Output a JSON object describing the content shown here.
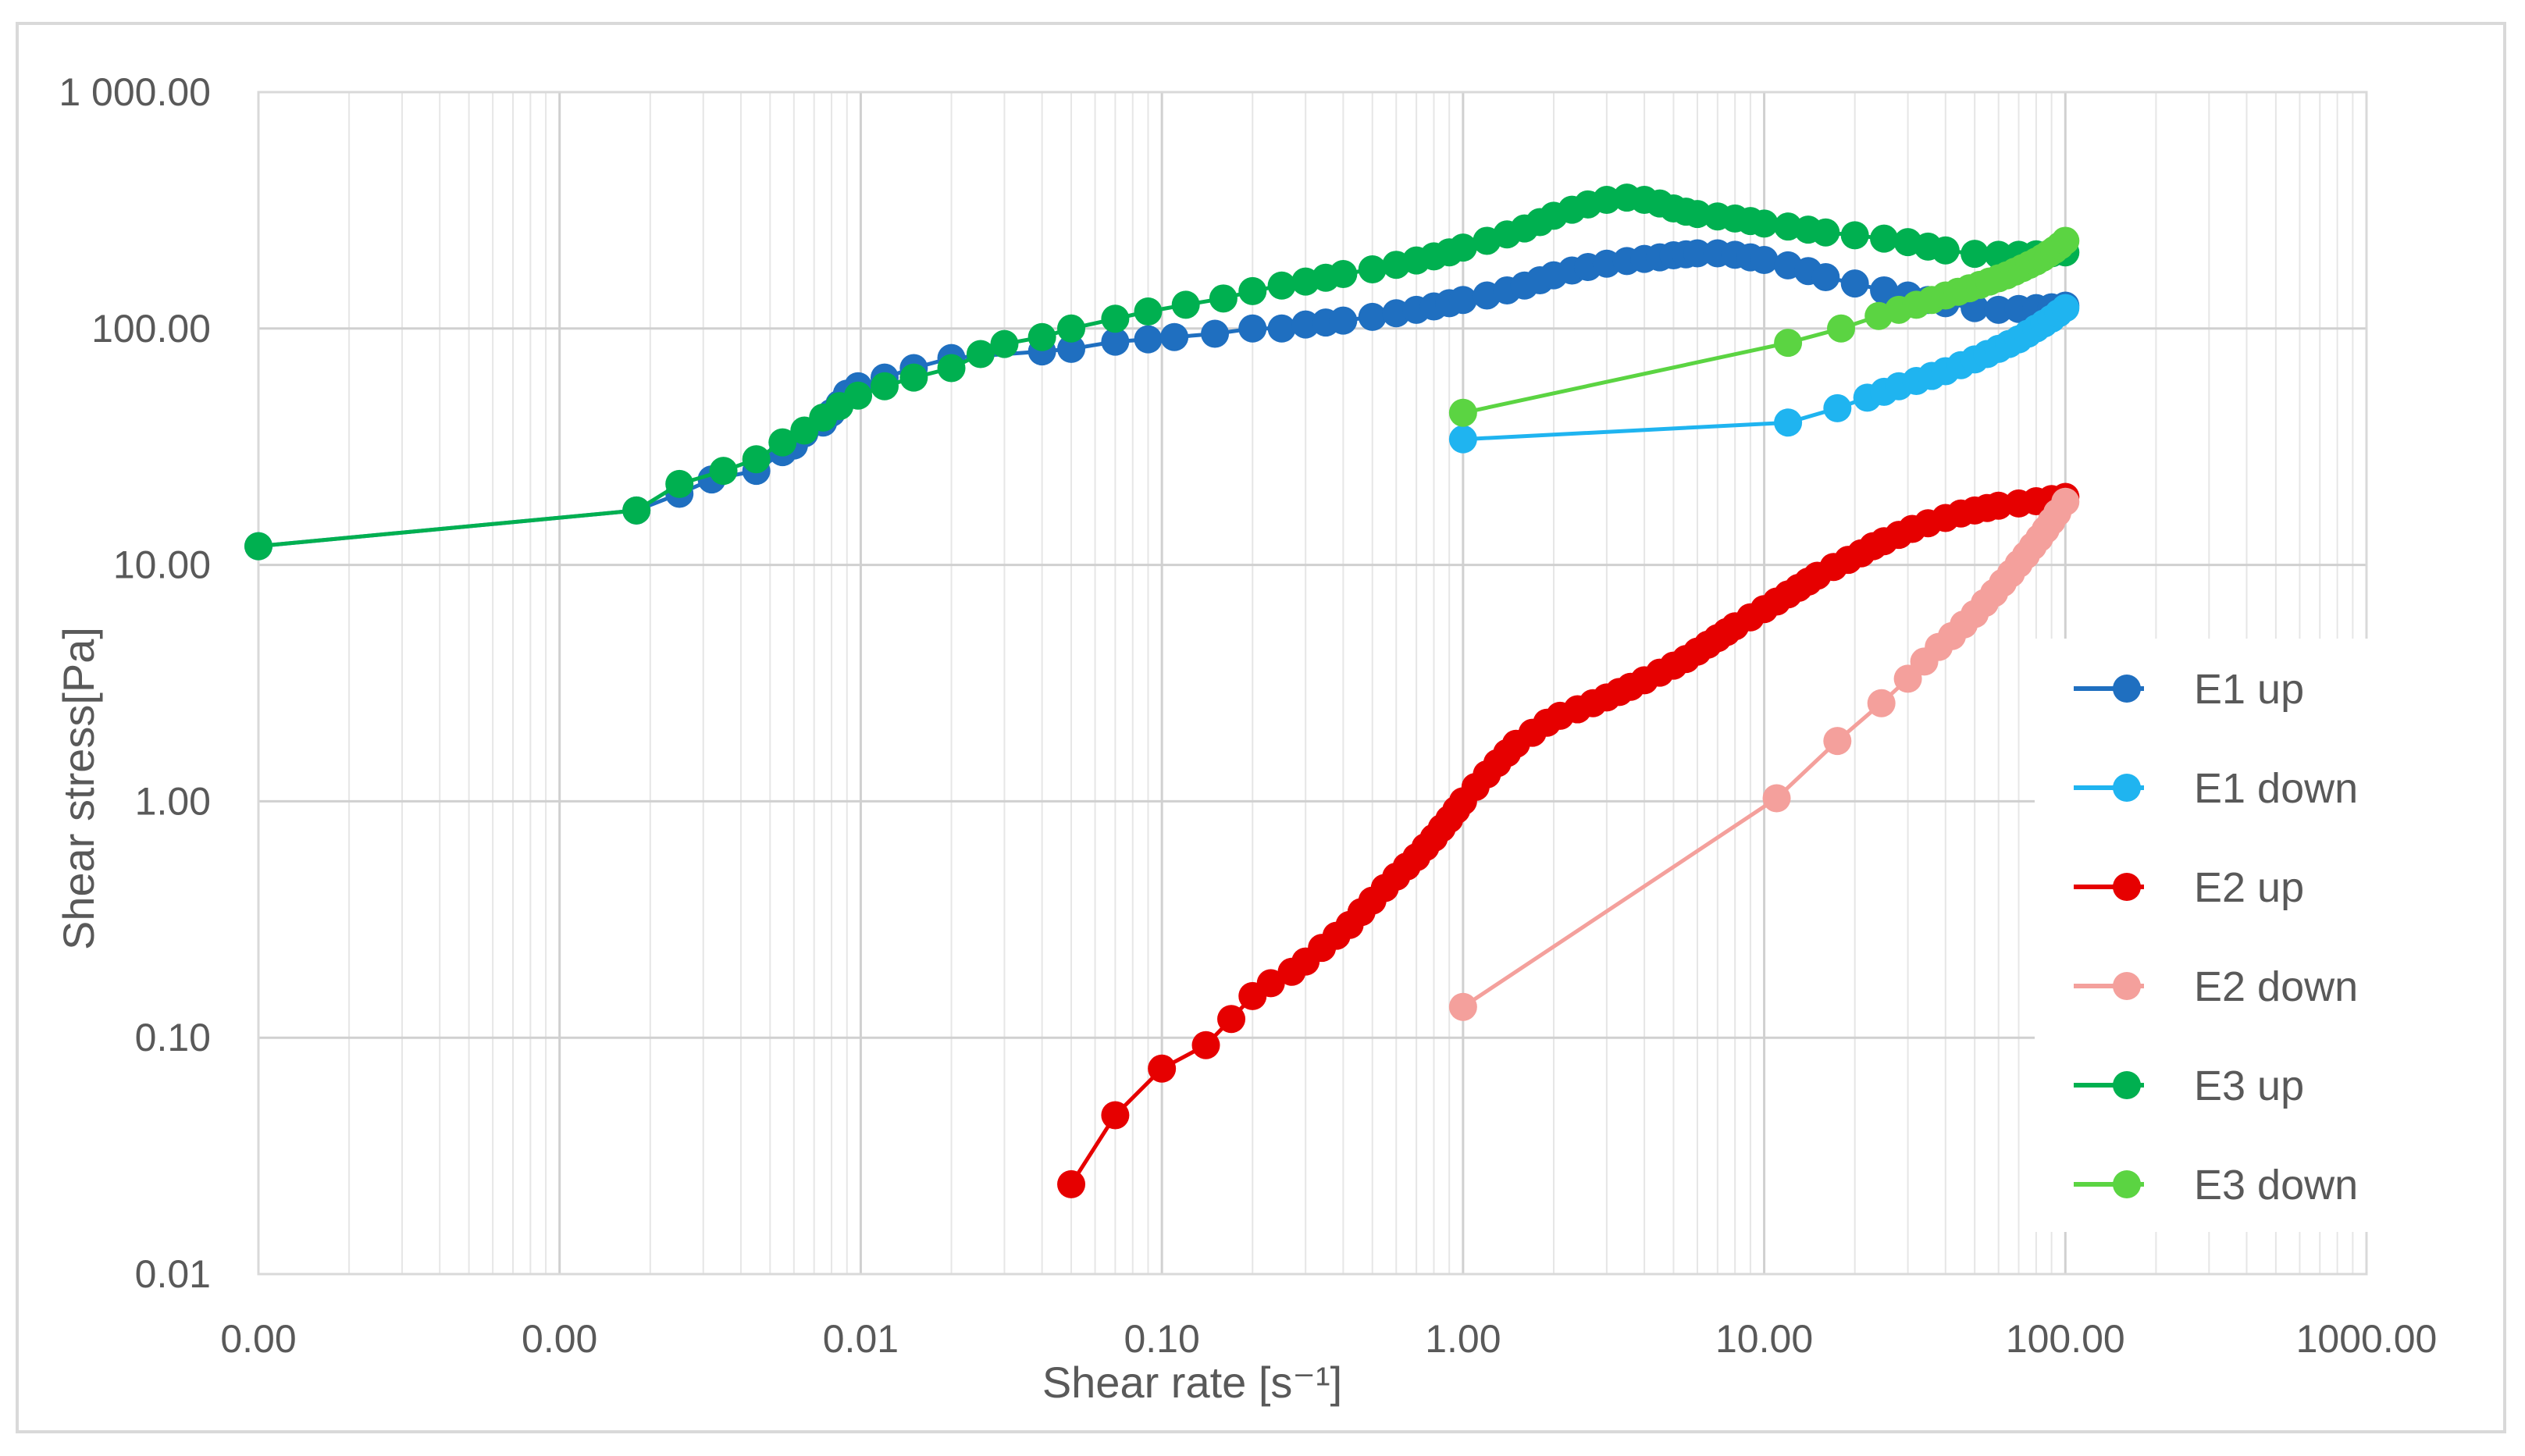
{
  "chart_data": {
    "type": "scatter",
    "title": "",
    "xlabel": "Shear rate [s⁻¹]",
    "ylabel": "Shear stress[Pa]",
    "x_scale": "log",
    "y_scale": "log",
    "xlim": [
      0.0001,
      1000
    ],
    "ylim": [
      0.01,
      1000
    ],
    "x_tick_labels": [
      "0.00",
      "0.00",
      "0.01",
      "0.10",
      "1.00",
      "10.00",
      "100.00",
      "1000.00"
    ],
    "y_tick_labels": [
      "0.01",
      "0.10",
      "1.00",
      "10.00",
      "100.00",
      "1 000.00"
    ],
    "grid": true,
    "legend_position": "right",
    "series": [
      {
        "name": "E1 up",
        "color": "#1f6fc0",
        "x": [
          0.0001,
          0.0018,
          0.0025,
          0.0032,
          0.0045,
          0.0055,
          0.006,
          0.0065,
          0.0075,
          0.008,
          0.0085,
          0.009,
          0.0098,
          0.012,
          0.015,
          0.02,
          0.04,
          0.05,
          0.07,
          0.09,
          0.11,
          0.15,
          0.2,
          0.25,
          0.3,
          0.35,
          0.4,
          0.5,
          0.6,
          0.7,
          0.8,
          0.9,
          1.0,
          1.2,
          1.4,
          1.6,
          1.8,
          2.0,
          2.3,
          2.6,
          3.0,
          3.5,
          4.0,
          4.5,
          5.0,
          5.5,
          6.0,
          7.0,
          8.0,
          9.0,
          10,
          12,
          14,
          16,
          20,
          25,
          30,
          35,
          40,
          50,
          60,
          70,
          80,
          90,
          100
        ],
        "y": [
          12,
          17,
          20,
          23,
          25,
          30,
          32,
          36,
          40,
          44,
          48,
          53,
          57,
          62,
          68,
          75,
          80,
          82,
          88,
          90,
          92,
          95,
          100,
          100,
          104,
          106,
          108,
          112,
          116,
          120,
          124,
          128,
          132,
          138,
          145,
          152,
          160,
          168,
          176,
          182,
          188,
          193,
          197,
          200,
          204,
          206,
          208,
          208,
          205,
          200,
          195,
          185,
          175,
          165,
          155,
          145,
          138,
          132,
          128,
          122,
          120,
          121,
          122,
          123,
          125
        ]
      },
      {
        "name": "E1 down",
        "color": "#1fb4f0",
        "x": [
          1.0,
          12,
          17.5,
          22,
          25,
          28,
          32,
          36,
          40,
          45,
          50,
          55,
          60,
          65,
          70,
          75,
          80,
          85,
          90,
          95,
          100
        ],
        "y": [
          34,
          40,
          46,
          51,
          54,
          57,
          60,
          63,
          66,
          70,
          74,
          78,
          82,
          86,
          90,
          95,
          100,
          105,
          110,
          116,
          122
        ]
      },
      {
        "name": "E2 up",
        "color": "#e60000",
        "x": [
          0.05,
          0.07,
          0.1,
          0.14,
          0.17,
          0.2,
          0.23,
          0.27,
          0.3,
          0.34,
          0.38,
          0.42,
          0.46,
          0.5,
          0.55,
          0.6,
          0.65,
          0.7,
          0.75,
          0.8,
          0.85,
          0.9,
          0.95,
          1.0,
          1.1,
          1.2,
          1.3,
          1.4,
          1.5,
          1.7,
          1.9,
          2.1,
          2.4,
          2.7,
          3.0,
          3.3,
          3.6,
          4.0,
          4.5,
          5.0,
          5.5,
          6.0,
          6.5,
          7.0,
          7.5,
          8.0,
          9.0,
          10,
          11,
          12,
          13,
          14,
          15,
          17,
          19,
          21,
          23,
          25,
          28,
          31,
          35,
          40,
          45,
          50,
          55,
          60,
          70,
          80,
          90,
          100
        ],
        "y": [
          0.024,
          0.047,
          0.074,
          0.093,
          0.12,
          0.15,
          0.17,
          0.19,
          0.21,
          0.24,
          0.27,
          0.3,
          0.34,
          0.38,
          0.43,
          0.48,
          0.53,
          0.58,
          0.64,
          0.7,
          0.77,
          0.84,
          0.92,
          1.0,
          1.15,
          1.3,
          1.45,
          1.6,
          1.75,
          1.95,
          2.15,
          2.3,
          2.45,
          2.6,
          2.75,
          2.9,
          3.05,
          3.25,
          3.5,
          3.75,
          4.0,
          4.3,
          4.6,
          4.9,
          5.2,
          5.5,
          6.0,
          6.5,
          7.0,
          7.5,
          8.0,
          8.5,
          9.0,
          9.8,
          10.5,
          11.2,
          12.0,
          12.6,
          13.4,
          14.2,
          15.0,
          15.8,
          16.5,
          17.0,
          17.4,
          17.8,
          18.2,
          18.6,
          19.0,
          19.4
        ]
      },
      {
        "name": "E2 down",
        "color": "#f4a09c",
        "x": [
          1.0,
          11,
          17.5,
          24.5,
          30,
          34,
          38,
          42,
          46,
          50,
          54,
          58,
          62,
          66,
          70,
          74,
          78,
          82,
          86,
          90,
          94,
          100
        ],
        "y": [
          0.135,
          1.03,
          1.8,
          2.6,
          3.3,
          3.9,
          4.5,
          5.0,
          5.6,
          6.2,
          6.9,
          7.6,
          8.4,
          9.2,
          10.1,
          11.0,
          12.0,
          13.0,
          14.1,
          15.3,
          16.6,
          18.5
        ]
      },
      {
        "name": "E3 up",
        "color": "#00b050",
        "x": [
          0.0001,
          0.0018,
          0.0025,
          0.0035,
          0.0045,
          0.0055,
          0.0065,
          0.0075,
          0.0085,
          0.0098,
          0.012,
          0.015,
          0.02,
          0.025,
          0.03,
          0.04,
          0.05,
          0.07,
          0.09,
          0.12,
          0.16,
          0.2,
          0.25,
          0.3,
          0.35,
          0.4,
          0.5,
          0.6,
          0.7,
          0.8,
          0.9,
          1.0,
          1.2,
          1.4,
          1.6,
          1.8,
          2.0,
          2.3,
          2.6,
          3.0,
          3.5,
          4.0,
          4.5,
          5.0,
          5.5,
          6.0,
          7.0,
          8.0,
          9.0,
          10,
          12,
          14,
          16,
          20,
          25,
          30,
          35,
          40,
          50,
          60,
          70,
          80,
          90,
          100
        ],
        "y": [
          12,
          17,
          22,
          25,
          28,
          33,
          37,
          42,
          47,
          52,
          57,
          62,
          68,
          78,
          86,
          92,
          100,
          110,
          118,
          126,
          134,
          144,
          152,
          158,
          164,
          170,
          178,
          186,
          194,
          202,
          210,
          220,
          235,
          250,
          265,
          282,
          300,
          318,
          335,
          350,
          358,
          350,
          338,
          322,
          312,
          305,
          298,
          292,
          285,
          278,
          270,
          262,
          255,
          248,
          240,
          232,
          222,
          214,
          207,
          205,
          205,
          206,
          208,
          210
        ]
      },
      {
        "name": "E3 down",
        "color": "#5bd442",
        "x": [
          1.0,
          12,
          18,
          24,
          28,
          32,
          36,
          40,
          44,
          48,
          52,
          56,
          60,
          64,
          68,
          72,
          76,
          80,
          84,
          88,
          92,
          96,
          100
        ],
        "y": [
          44,
          87,
          100,
          113,
          120,
          126,
          132,
          138,
          143,
          148,
          153,
          158,
          163,
          168,
          174,
          180,
          186,
          192,
          199,
          207,
          215,
          224,
          235
        ]
      }
    ]
  }
}
